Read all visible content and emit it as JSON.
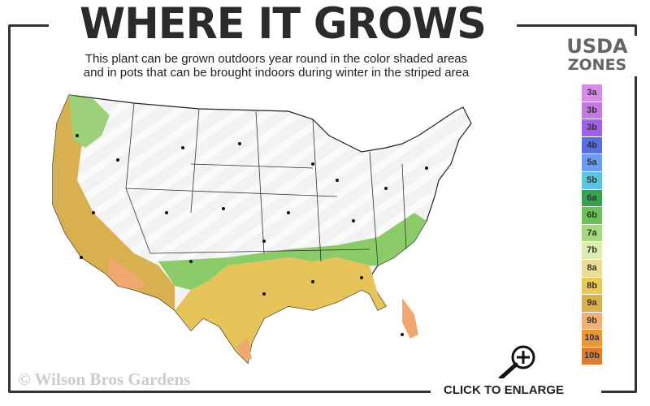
{
  "title": "WHERE IT GROWS",
  "subtitle": {
    "line1": "This plant can be grown outdoors year round in the color shaded areas",
    "line2": "and in pots that can be brought indoors during winter in the striped area"
  },
  "legend": {
    "title_line1": "USDA",
    "title_line2": "ZONES",
    "zones": [
      {
        "label": "3a",
        "color": "#d98ce6"
      },
      {
        "label": "3b",
        "color": "#c07ae0"
      },
      {
        "label": "3b",
        "color": "#a060e8"
      },
      {
        "label": "4b",
        "color": "#5a6ee0"
      },
      {
        "label": "5a",
        "color": "#6a9ef0"
      },
      {
        "label": "5b",
        "color": "#5cc6e0"
      },
      {
        "label": "6a",
        "color": "#3aa050"
      },
      {
        "label": "6b",
        "color": "#6cc058"
      },
      {
        "label": "7a",
        "color": "#a6d880"
      },
      {
        "label": "7b",
        "color": "#dcecb0"
      },
      {
        "label": "8a",
        "color": "#ecdc98"
      },
      {
        "label": "8b",
        "color": "#e8c858"
      },
      {
        "label": "9a",
        "color": "#d8b050"
      },
      {
        "label": "9b",
        "color": "#f0b078"
      },
      {
        "label": "10a",
        "color": "#ec9438"
      },
      {
        "label": "10b",
        "color": "#e07c30"
      }
    ]
  },
  "watermark": "© Wilson Bros Gardens",
  "enlarge_label": "CLICK TO ENLARGE",
  "icons": {
    "enlarge": "magnifier-plus-icon"
  }
}
